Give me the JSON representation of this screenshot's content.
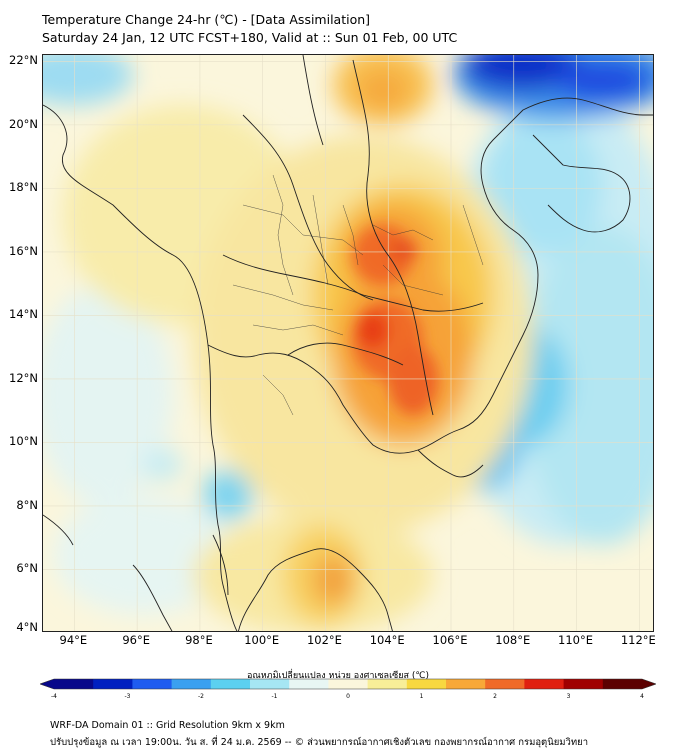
{
  "title": {
    "line1": "Temperature Change 24-hr (℃) - [Data Assimilation]",
    "line2": "Saturday 24 Jan, 12 UTC FCST+180, Valid at :: Sun 01 Feb, 00 UTC"
  },
  "map": {
    "lat_labels": [
      "22°N",
      "20°N",
      "18°N",
      "16°N",
      "14°N",
      "12°N",
      "10°N",
      "8°N",
      "6°N",
      "4°N"
    ],
    "lon_labels": [
      "94°E",
      "96°E",
      "98°E",
      "100°E",
      "102°E",
      "104°E",
      "106°E",
      "108°E",
      "110°E",
      "112°E"
    ],
    "lat_values": [
      22,
      20,
      18,
      16,
      14,
      12,
      10,
      8,
      6,
      4
    ],
    "lon_values": [
      94,
      96,
      98,
      100,
      102,
      104,
      106,
      108,
      110,
      112
    ]
  },
  "colorbar": {
    "title": "อุณหภูมิเปลี่ยนแปลง หน่วย องศาเซลเซียส (℃)",
    "ticks": [
      "-4",
      "-3",
      "-2",
      "-1",
      "0",
      "1",
      "2",
      "3",
      "4"
    ],
    "min": -4,
    "max": 4,
    "colors": [
      "#08088a",
      "#0020c0",
      "#1f5cf0",
      "#3aa0f0",
      "#5cd0f0",
      "#a6e6f4",
      "#e8f6f4",
      "#fbf6dc",
      "#f8ee98",
      "#f8d840",
      "#f8a838",
      "#f06a28",
      "#e02010",
      "#a00000",
      "#5c0000"
    ]
  },
  "footer": {
    "line1": "WRF-DA Domain 01 :: Grid Resolution 9km x 9km",
    "line2": "ปรับปรุงข้อมูล ณ เวลา 19:00น. วัน ส. ที่ 24 ม.ค. 2569 -- © ส่วนพยากรณ์อากาศเชิงตัวเลข กองพยากรณ์อากาศ กรมอุตุนิยมวิทยา"
  }
}
